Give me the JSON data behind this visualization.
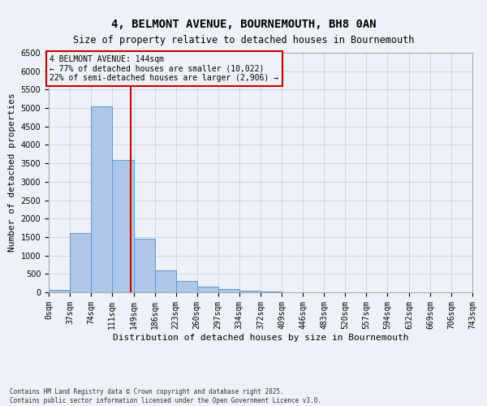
{
  "title": "4, BELMONT AVENUE, BOURNEMOUTH, BH8 0AN",
  "subtitle": "Size of property relative to detached houses in Bournemouth",
  "xlabel": "Distribution of detached houses by size in Bournemouth",
  "ylabel": "Number of detached properties",
  "footnote1": "Contains HM Land Registry data © Crown copyright and database right 2025.",
  "footnote2": "Contains public sector information licensed under the Open Government Licence v3.0.",
  "annotation_line1": "4 BELMONT AVENUE: 144sqm",
  "annotation_line2": "← 77% of detached houses are smaller (10,022)",
  "annotation_line3": "22% of semi-detached houses are larger (2,906) →",
  "property_size": 144,
  "bar_edges": [
    0,
    37,
    74,
    111,
    149,
    186,
    223,
    260,
    297,
    334,
    372,
    409,
    446,
    483,
    520,
    557,
    594,
    632,
    669,
    706,
    743
  ],
  "bar_heights": [
    70,
    1600,
    5050,
    3600,
    1450,
    600,
    310,
    150,
    90,
    50,
    20,
    10,
    5,
    3,
    2,
    1,
    1,
    0,
    0,
    0
  ],
  "bar_color": "#aec6e8",
  "bar_edge_color": "#5b9bd5",
  "vline_color": "#cc0000",
  "vline_x": 144,
  "annotation_box_color": "#cc0000",
  "background_color": "#eef2f8",
  "grid_color": "#c8d8ea",
  "ylim": [
    0,
    6500
  ],
  "yticks": [
    0,
    500,
    1000,
    1500,
    2000,
    2500,
    3000,
    3500,
    4000,
    4500,
    5000,
    5500,
    6000,
    6500
  ],
  "title_fontsize": 10,
  "subtitle_fontsize": 8.5,
  "axis_label_fontsize": 8,
  "tick_fontsize": 7
}
